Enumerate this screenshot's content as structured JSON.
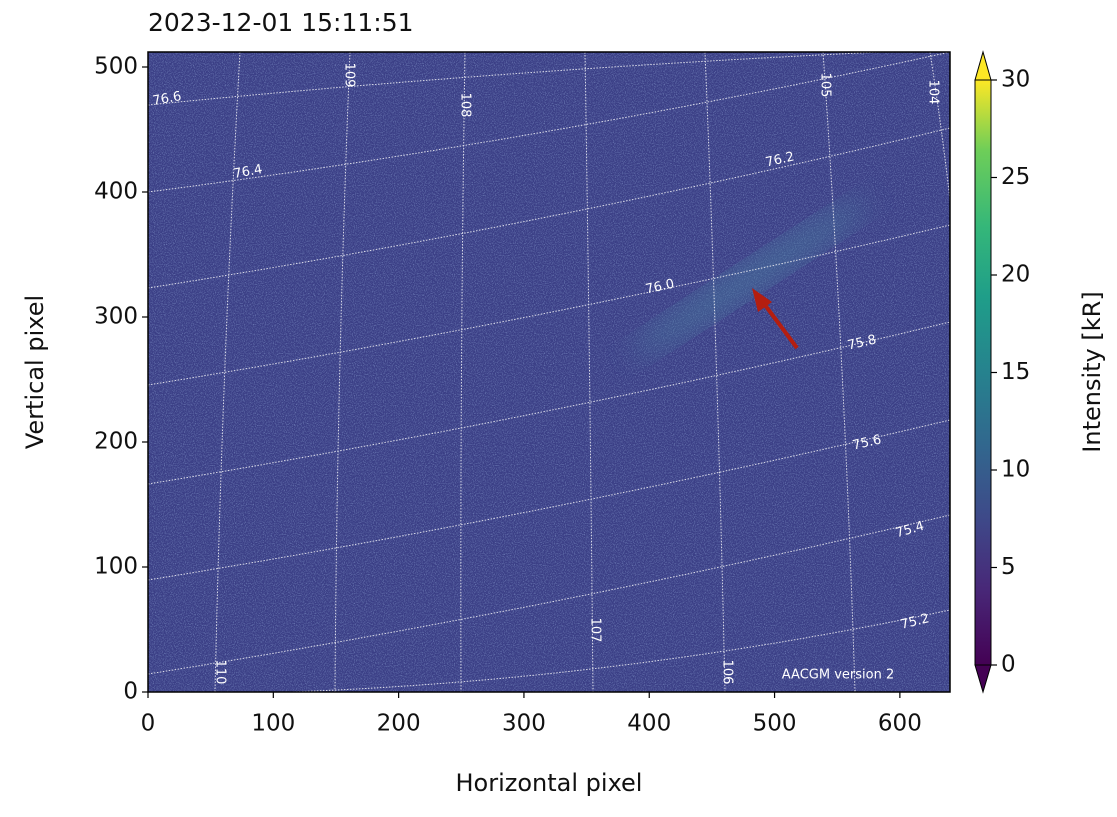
{
  "chart_data": {
    "type": "image",
    "title": "2023-12-01 15:11:51",
    "xlabel": "Horizontal pixel",
    "ylabel": "Vertical pixel",
    "xlim": [
      0,
      640
    ],
    "ylim": [
      0,
      512
    ],
    "xticks": [
      0,
      100,
      200,
      300,
      400,
      500,
      600
    ],
    "yticks": [
      0,
      100,
      200,
      300,
      400,
      500
    ],
    "colorbar": {
      "label": "Intensity [kR]",
      "lim": [
        0,
        30
      ],
      "ticks": [
        0,
        5,
        10,
        15,
        20,
        25,
        30
      ],
      "colormap": "viridis",
      "extend": "both"
    },
    "latitude_labels": [
      "76.6",
      "76.4",
      "76.2",
      "76.0",
      "75.8",
      "75.6",
      "75.4",
      "75.2"
    ],
    "longitude_labels": [
      "110",
      "109",
      "108",
      "107",
      "106",
      "105",
      "104"
    ],
    "annotation": "AACGM version 2"
  }
}
